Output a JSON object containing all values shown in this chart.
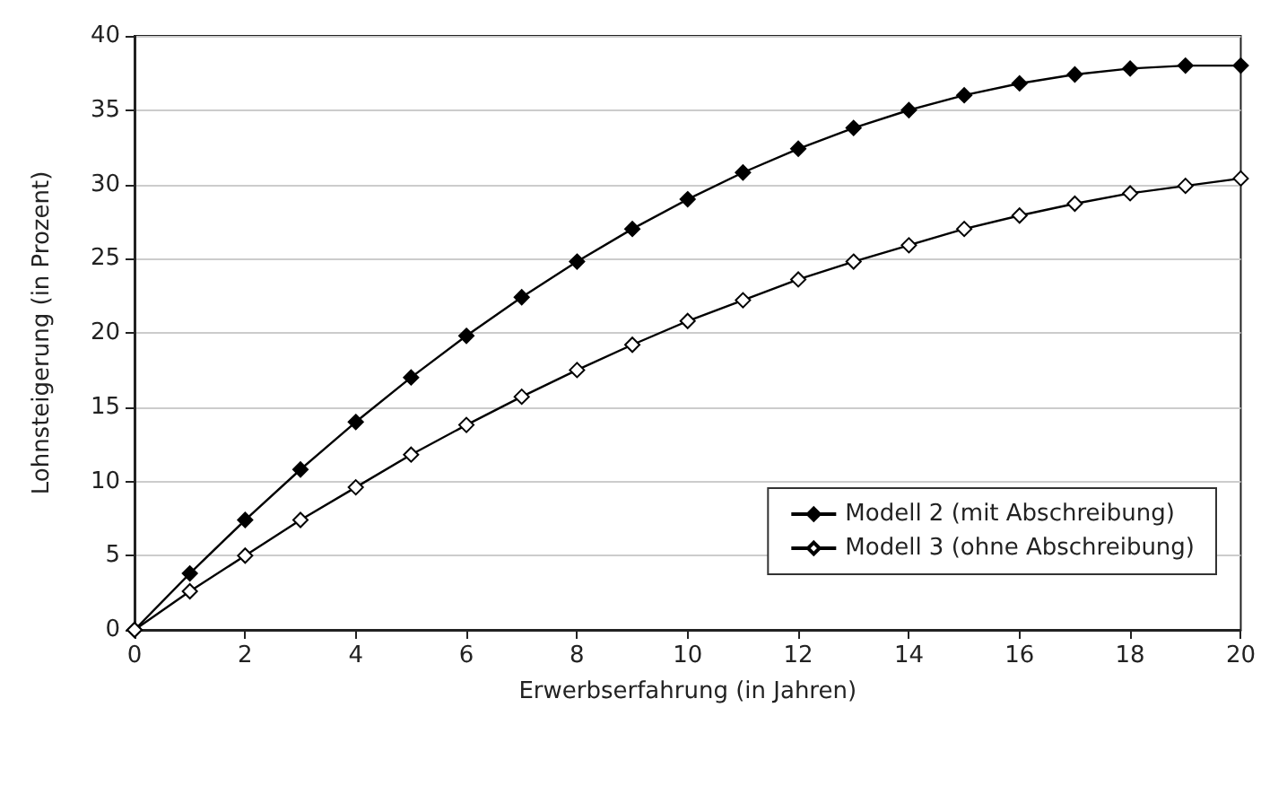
{
  "chart_data": {
    "type": "line",
    "xlabel": "Erwerbserfahrung (in Jahren)",
    "ylabel": "Lohnsteigerung (in Prozent)",
    "x": [
      0,
      1,
      2,
      3,
      4,
      5,
      6,
      7,
      8,
      9,
      10,
      11,
      12,
      13,
      14,
      15,
      16,
      17,
      18,
      19,
      20
    ],
    "series": [
      {
        "name": "Modell 2 (mit Abschreibung)",
        "color": "#000000",
        "values": [
          0,
          3.8,
          7.4,
          10.8,
          14,
          17,
          19.8,
          22.4,
          24.8,
          27,
          29,
          30.8,
          32.4,
          33.8,
          35,
          36,
          36.8,
          37.4,
          37.8,
          38,
          38
        ]
      },
      {
        "name": "Modell 3 (ohne Abschreibung)",
        "color": "#000000",
        "values": [
          0,
          2.6,
          5,
          7.4,
          9.6,
          11.8,
          13.8,
          15.7,
          17.5,
          19.2,
          20.8,
          22.2,
          23.6,
          24.8,
          25.9,
          27,
          27.9,
          28.7,
          29.4,
          29.9,
          30.4
        ]
      }
    ],
    "xlim": [
      0,
      20
    ],
    "xticks": [
      0,
      2,
      4,
      6,
      8,
      10,
      12,
      14,
      16,
      18,
      20
    ],
    "ylim": [
      0,
      40
    ],
    "yticks": [
      0,
      5,
      10,
      15,
      20,
      25,
      30,
      35,
      40
    ],
    "grid": "y",
    "legend": "bottom right",
    "marker": "diamond",
    "line_style": "solid"
  }
}
